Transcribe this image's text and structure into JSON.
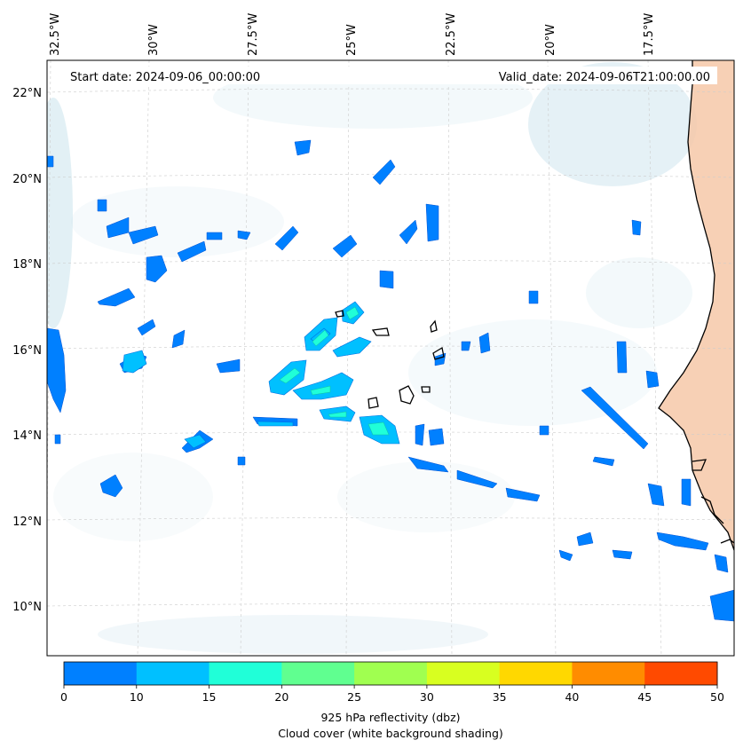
{
  "header": {
    "start_date": "Start date: 2024-09-06_00:00:00",
    "valid_date": "Valid_date: 2024-09-06T21:00:00.00"
  },
  "lon_labels": [
    "32.5°W",
    "30°W",
    "27.5°W",
    "25°W",
    "22.5°W",
    "20°W",
    "17.5°W"
  ],
  "lat_labels": [
    "22°N",
    "20°N",
    "18°N",
    "16°N",
    "14°N",
    "12°N",
    "10°N"
  ],
  "colorbar": {
    "ticks": [
      "0",
      "10",
      "15",
      "20",
      "25",
      "30",
      "35",
      "40",
      "45",
      "50"
    ],
    "colors": [
      "#0080ff",
      "#00c0ff",
      "#20ffd8",
      "#60ff90",
      "#a0ff50",
      "#d8ff20",
      "#ffd800",
      "#ff8c00",
      "#ff4a00"
    ],
    "label": "925 hPa reflectivity (dbz)",
    "sublabel": "Cloud cover (white background shading)"
  },
  "map_colors": {
    "cloud": "#cfe6ee",
    "land": "#f6c8a8",
    "coast": "#000000",
    "grid": "#cccccc"
  }
}
